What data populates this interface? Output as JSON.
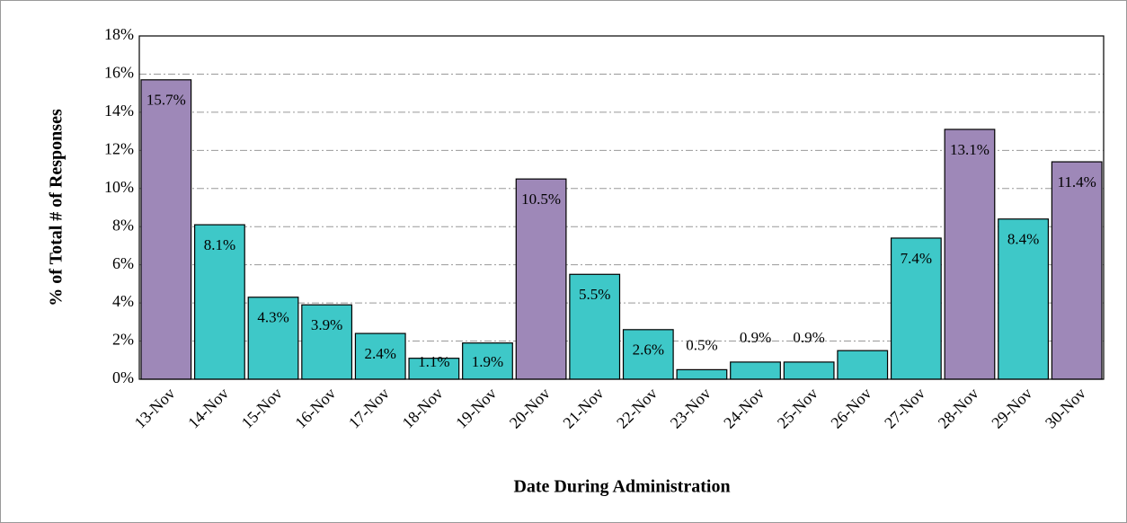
{
  "chart_data": {
    "type": "bar",
    "y_axis_label": "% of Total # of Responses",
    "x_axis_label": "Date During Administration",
    "categories": [
      "13-Nov",
      "14-Nov",
      "15-Nov",
      "16-Nov",
      "17-Nov",
      "18-Nov",
      "19-Nov",
      "20-Nov",
      "21-Nov",
      "22-Nov",
      "23-Nov",
      "24-Nov",
      "25-Nov",
      "26-Nov",
      "27-Nov",
      "28-Nov",
      "29-Nov",
      "30-Nov"
    ],
    "values": [
      15.7,
      8.1,
      4.3,
      3.9,
      2.4,
      1.1,
      1.9,
      10.5,
      5.5,
      2.6,
      0.5,
      0.9,
      0.9,
      1.5,
      7.4,
      13.1,
      8.4,
      11.4
    ],
    "value_labels": [
      "15.7%",
      "8.1%",
      "4.3%",
      "3.9%",
      "2.4%",
      "1.1%",
      "1.9%",
      "10.5%",
      "5.5%",
      "2.6%",
      "0.5%",
      "0.9%",
      "0.9%",
      null,
      "7.4%",
      "13.1%",
      "8.4%",
      "11.4%"
    ],
    "colors": [
      "#9e88b8",
      "#3ec8c8",
      "#3ec8c8",
      "#3ec8c8",
      "#3ec8c8",
      "#3ec8c8",
      "#3ec8c8",
      "#9e88b8",
      "#3ec8c8",
      "#3ec8c8",
      "#3ec8c8",
      "#3ec8c8",
      "#3ec8c8",
      "#3ec8c8",
      "#3ec8c8",
      "#9e88b8",
      "#3ec8c8",
      "#9e88b8"
    ],
    "ylim": [
      0,
      18
    ],
    "yticks": [
      {
        "value": 0,
        "label": "0%"
      },
      {
        "value": 2,
        "label": "2%"
      },
      {
        "value": 4,
        "label": "4%"
      },
      {
        "value": 6,
        "label": "6%"
      },
      {
        "value": 8,
        "label": "8%"
      },
      {
        "value": 10,
        "label": "10%"
      },
      {
        "value": 12,
        "label": "12%"
      },
      {
        "value": 14,
        "label": "14%"
      },
      {
        "value": 16,
        "label": "16%"
      },
      {
        "value": 18,
        "label": "18%"
      }
    ],
    "grid": true
  }
}
